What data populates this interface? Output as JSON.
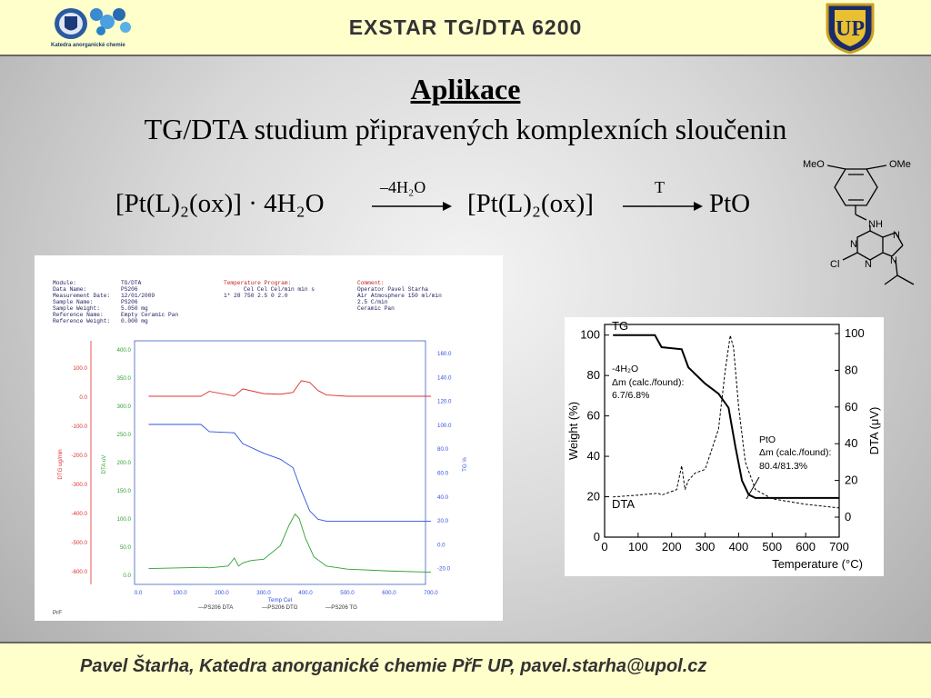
{
  "header": {
    "title": "EXSTAR TG/DTA 6200",
    "left_logo_caption": "Katedra anorganické chemie"
  },
  "slide": {
    "title": "Aplikace",
    "subtitle": "TG/DTA studium připravených komplexních sloučenin"
  },
  "reaction": {
    "reactant": "[Pt(L)₂(ox)] · 4H₂O",
    "arrow1_label": "–4H₂O",
    "intermediate": "[Pt(L)₂(ox)]",
    "arrow2_label": "T",
    "product": "PtO"
  },
  "molecule": {
    "substituent_top_left": "MeO",
    "substituent_top_right": "OMe",
    "atoms": [
      "NH",
      "N",
      "N",
      "N",
      "N",
      "Cl"
    ]
  },
  "instrument_printout": {
    "header_left_labels": [
      "Module:",
      "Data Name:",
      "Measurement Date:",
      "Sample Name:",
      "Sample Weight:",
      "Reference Name:",
      "Reference Weight:"
    ],
    "header_left_values": [
      "TG/DTA",
      "PS206",
      "12/01/2009",
      "PS206",
      "5.050 mg",
      "Empty Ceramic Pan",
      "0.000 mg"
    ],
    "program_title": "Temperature Program:",
    "program_cols": "Cel   Cel   Cel/min   min   s",
    "program_row": "1*   28   750   2.5   0   2.0",
    "comment_title": "Comment:",
    "comment_lines": [
      "Operator  Pavel Starha",
      "Air Atmosphere 150 ml/min",
      "2.5 C/min",
      "Ceramic Pan"
    ],
    "axis_dtg_label": "DTG ug/min",
    "axis_dta_label": "DTA uV",
    "axis_tg_label": "TG %",
    "x_axis_label": "Temp Cel",
    "dtg_ticks": [
      "100.0",
      "0.0",
      "-100.0",
      "-200.0",
      "-300.0",
      "-400.0",
      "-500.0",
      "-600.0"
    ],
    "dta_ticks": [
      "400.0",
      "350.0",
      "300.0",
      "250.0",
      "200.0",
      "150.0",
      "100.0",
      "50.0",
      "0.0"
    ],
    "tg_ticks": [
      "160.0",
      "140.0",
      "120.0",
      "100.0",
      "80.0",
      "60.0",
      "40.0",
      "20.0",
      "0.0",
      "-20.0"
    ],
    "x_ticks": [
      "0.0",
      "100.0",
      "200.0",
      "300.0",
      "400.0",
      "500.0",
      "600.0",
      "700.0"
    ],
    "legend": [
      "—PS206  DTA",
      "—PS206  DTG",
      "—PS206  TG"
    ],
    "footer_tag": "PrF"
  },
  "chart_data": {
    "type": "line",
    "xlabel": "Temperature (°C)",
    "ylabel": "Weight (%)",
    "y2label": "DTA (μV)",
    "xlim": [
      0,
      700
    ],
    "ylim": [
      0,
      100
    ],
    "y2lim": [
      0,
      100
    ],
    "x_ticks": [
      "0",
      "100",
      "200",
      "300",
      "400",
      "500",
      "600",
      "700"
    ],
    "y_ticks": [
      "0",
      "20",
      "40",
      "60",
      "80",
      "100"
    ],
    "y2_ticks": [
      "0",
      "20",
      "40",
      "60",
      "80",
      "100"
    ],
    "series": [
      {
        "name": "TG",
        "x": [
          25,
          150,
          170,
          230,
          250,
          300,
          340,
          370,
          390,
          410,
          430,
          450,
          500,
          600,
          700
        ],
        "y": [
          100,
          100,
          94,
          93,
          84,
          76,
          71,
          64,
          45,
          28,
          21,
          19.4,
          19.4,
          19.4,
          19.4
        ]
      },
      {
        "name": "DTA",
        "x": [
          25,
          100,
          160,
          170,
          215,
          230,
          240,
          250,
          270,
          300,
          340,
          360,
          375,
          385,
          400,
          420,
          450,
          500,
          600,
          700
        ],
        "y": [
          11,
          12,
          13,
          12,
          15,
          28,
          15,
          20,
          24,
          26,
          48,
          80,
          99,
          92,
          60,
          30,
          15,
          10,
          7,
          5
        ]
      }
    ],
    "annotations": [
      "-4H₂O",
      "Δm (calc./found):",
      "6.7/6.8%",
      "PtO",
      "Δm (calc./found):",
      "80.4/81.3%"
    ]
  },
  "footer": {
    "text": "Pavel Štarha, Katedra anorganické chemie PřF UP, pavel.starha@upol.cz"
  }
}
